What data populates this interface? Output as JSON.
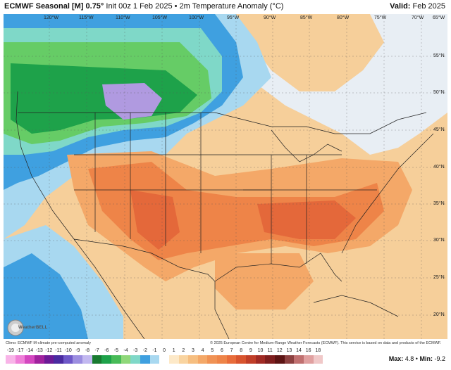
{
  "header": {
    "model": "ECMWF Seasonal [M]",
    "resolution": "0.75°",
    "run": "Init 00z 1 Feb 2025",
    "bullet": "•",
    "field": "2m Temperature Anomaly (°C)",
    "valid_label": "Valid:",
    "valid_value": "Feb 2025"
  },
  "map": {
    "longitude_labels": [
      "120°W",
      "115°W",
      "110°W",
      "105°W",
      "100°W",
      "95°W",
      "90°W",
      "85°W",
      "80°W",
      "75°W",
      "70°W",
      "65°W"
    ],
    "latitude_labels": [
      "55°N",
      "50°N",
      "45°N",
      "40°N",
      "35°N",
      "30°N",
      "25°N",
      "20°N"
    ],
    "anomaly_colors": {
      "deep_cold": "#b09ae0",
      "cold_green": "#1ea24a",
      "cool_green": "#66cc66",
      "cool_teal": "#7fd8c8",
      "cool_blue": "#3fa0e0",
      "slightly_cool": "#a8d8f0",
      "near_zero": "#e8eef4",
      "mild_warm": "#f6cf9a",
      "warm": "#f4a868",
      "warmer": "#ee8448",
      "warmest": "#e4683a"
    }
  },
  "credits": {
    "left": "Climo: ECMWF M-climate pre-computed anomaly",
    "right": "© 2025 European Centre for Medium-Range Weather Forecasts (ECMWF). This service is based on data and products of the ECMWF.",
    "logo": "WeatherBELL"
  },
  "colorbar": {
    "ticks": [
      "-19",
      "-17",
      "-14",
      "-13",
      "-12",
      "-11",
      "-10",
      "-9",
      "-8",
      "-7",
      "-6",
      "-5",
      "-4",
      "-3",
      "-2",
      "-1",
      "0",
      "1",
      "2",
      "3",
      "4",
      "5",
      "6",
      "7",
      "8",
      "9",
      "10",
      "11",
      "12",
      "13",
      "14",
      "16",
      "18"
    ],
    "colors": [
      "#f8b4e8",
      "#ef7fd8",
      "#d447c0",
      "#a0229e",
      "#6c1a96",
      "#4a2aa0",
      "#6e58c8",
      "#9c8ee0",
      "#c2b8f0",
      "#187a30",
      "#1ea24a",
      "#48bb58",
      "#8fd87a",
      "#7fd8c8",
      "#3fa0e0",
      "#a8d8f0",
      "#ffffff",
      "#fde9c8",
      "#f9d4a0",
      "#f6be80",
      "#f4a868",
      "#f09254",
      "#ee8448",
      "#e86c3a",
      "#d8542e",
      "#c03e28",
      "#a02a24",
      "#7e1e1e",
      "#5c1414",
      "#8c4040",
      "#c07070",
      "#e0a0a0",
      "#f0c8c8"
    ]
  },
  "stats": {
    "max_label": "Max:",
    "max_value": "4.8",
    "sep": "•",
    "min_label": "Min:",
    "min_value": "-9.2"
  }
}
